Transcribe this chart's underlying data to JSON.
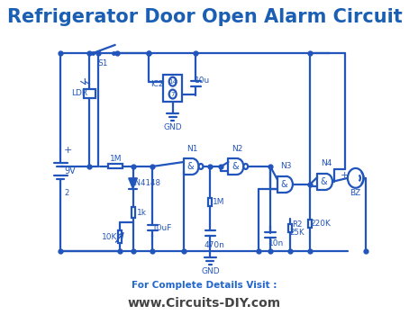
{
  "title": "Refrigerator Door Open Alarm Circuit",
  "title_color": "#1a5fb4",
  "title_fontsize": 15,
  "circuit_color": "#2255bb",
  "label_color": "#2255bb",
  "footer_line1": "For Complete Details Visit :",
  "footer_line2": "www.Circuits-DIY.com",
  "footer_color1": "#2266cc",
  "footer_color2": "#444444",
  "bg_color": "#ffffff",
  "lw": 1.6
}
